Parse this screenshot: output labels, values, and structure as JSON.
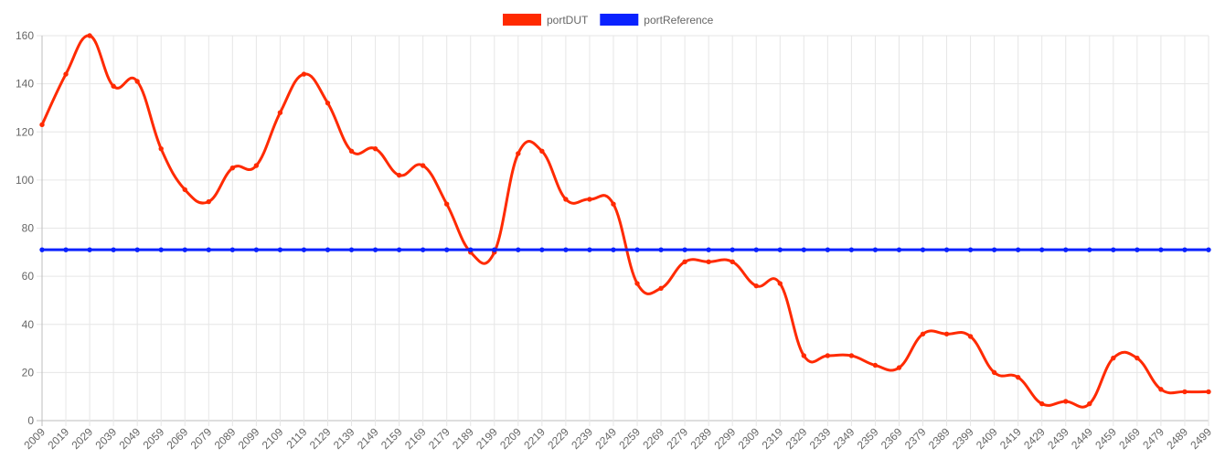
{
  "chart_data": {
    "type": "line",
    "title": "",
    "xlabel": "",
    "ylabel": "",
    "ylim": [
      0,
      160
    ],
    "yticks": [
      0,
      20,
      40,
      60,
      80,
      100,
      120,
      140,
      160
    ],
    "grid": true,
    "legend_position": "top",
    "categories": [
      "2009",
      "2019",
      "2029",
      "2039",
      "2049",
      "2059",
      "2069",
      "2079",
      "2089",
      "2099",
      "2109",
      "2119",
      "2129",
      "2139",
      "2149",
      "2159",
      "2169",
      "2179",
      "2189",
      "2199",
      "2209",
      "2219",
      "2229",
      "2239",
      "2249",
      "2259",
      "2269",
      "2279",
      "2289",
      "2299",
      "2309",
      "2319",
      "2329",
      "2339",
      "2349",
      "2359",
      "2369",
      "2379",
      "2389",
      "2399",
      "2409",
      "2419",
      "2429",
      "2439",
      "2449",
      "2459",
      "2469",
      "2479",
      "2489",
      "2499"
    ],
    "series": [
      {
        "name": "portDUT",
        "color": "#ff2a00",
        "values": [
          123,
          144,
          160,
          139,
          141,
          113,
          96,
          91,
          105,
          106,
          128,
          144,
          132,
          112,
          113,
          102,
          106,
          90,
          70,
          70,
          111,
          112,
          92,
          92,
          90,
          57,
          55,
          66,
          66,
          66,
          56,
          57,
          27,
          27,
          27,
          23,
          22,
          36,
          36,
          35,
          20,
          18,
          7,
          8,
          7,
          26,
          26,
          13,
          12,
          12
        ]
      },
      {
        "name": "portReference",
        "color": "#0a22ff",
        "values": [
          71,
          71,
          71,
          71,
          71,
          71,
          71,
          71,
          71,
          71,
          71,
          71,
          71,
          71,
          71,
          71,
          71,
          71,
          71,
          71,
          71,
          71,
          71,
          71,
          71,
          71,
          71,
          71,
          71,
          71,
          71,
          71,
          71,
          71,
          71,
          71,
          71,
          71,
          71,
          71,
          71,
          71,
          71,
          71,
          71,
          71,
          71,
          71,
          71,
          71
        ]
      }
    ]
  }
}
